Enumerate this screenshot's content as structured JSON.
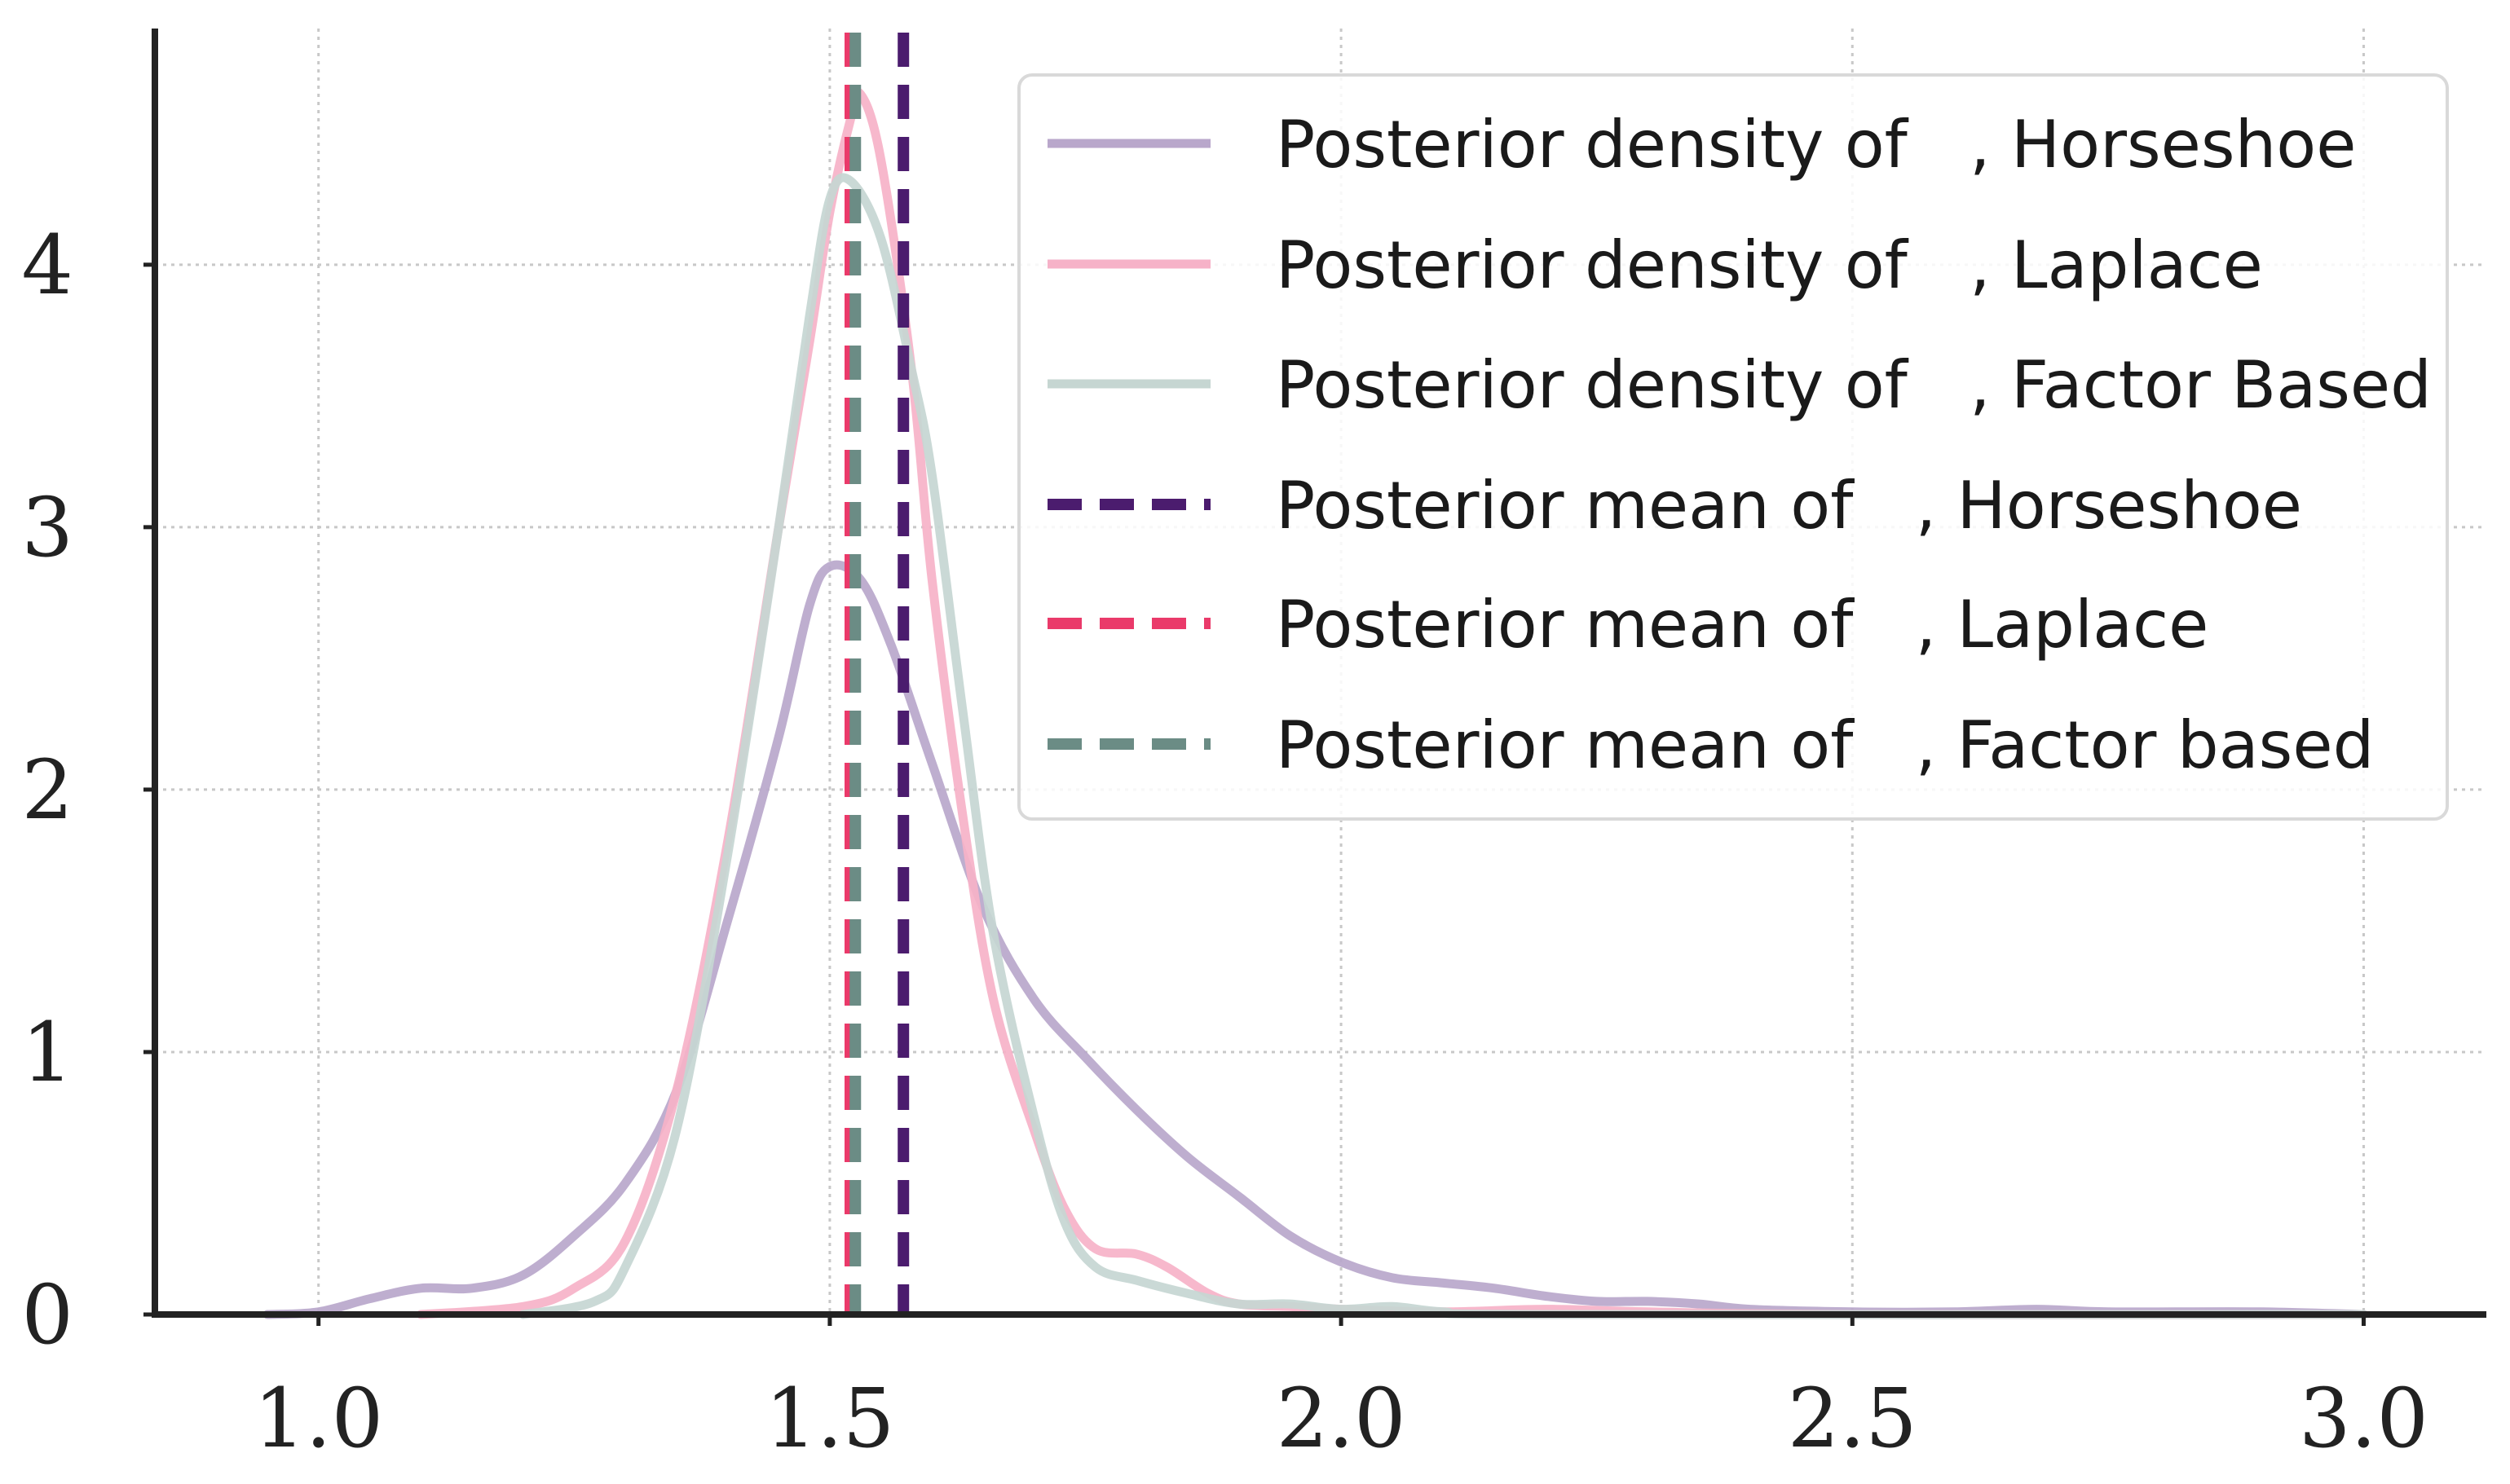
{
  "chart_data": {
    "type": "line",
    "title": "",
    "xlabel": "",
    "ylabel": "",
    "xlim": [
      0.84,
      3.12
    ],
    "ylim": [
      0,
      4.9
    ],
    "grid": true,
    "legend_position": "top-right",
    "x_ticks": [
      1.0,
      1.5,
      2.0,
      2.5,
      3.0
    ],
    "x_tick_labels": [
      "1.0",
      "1.5",
      "2.0",
      "2.5",
      "3.0"
    ],
    "y_ticks": [
      0,
      1,
      2,
      3,
      4
    ],
    "y_tick_labels": [
      "0",
      "1",
      "2",
      "3",
      "4"
    ],
    "series": [
      {
        "name": "Posterior density of , Horseshoe",
        "color": "#b9a7cb",
        "points": [
          [
            0.95,
            0.0
          ],
          [
            1.0,
            0.01
          ],
          [
            1.05,
            0.06
          ],
          [
            1.1,
            0.1
          ],
          [
            1.15,
            0.1
          ],
          [
            1.2,
            0.15
          ],
          [
            1.25,
            0.3
          ],
          [
            1.3,
            0.5
          ],
          [
            1.35,
            0.85
          ],
          [
            1.4,
            1.5
          ],
          [
            1.45,
            2.2
          ],
          [
            1.48,
            2.7
          ],
          [
            1.5,
            2.85
          ],
          [
            1.53,
            2.8
          ],
          [
            1.56,
            2.55
          ],
          [
            1.6,
            2.1
          ],
          [
            1.65,
            1.55
          ],
          [
            1.7,
            1.2
          ],
          [
            1.75,
            0.98
          ],
          [
            1.8,
            0.78
          ],
          [
            1.85,
            0.6
          ],
          [
            1.9,
            0.45
          ],
          [
            1.95,
            0.3
          ],
          [
            2.0,
            0.2
          ],
          [
            2.05,
            0.14
          ],
          [
            2.1,
            0.12
          ],
          [
            2.15,
            0.1
          ],
          [
            2.2,
            0.07
          ],
          [
            2.25,
            0.05
          ],
          [
            2.3,
            0.05
          ],
          [
            2.35,
            0.04
          ],
          [
            2.4,
            0.02
          ],
          [
            2.5,
            0.01
          ],
          [
            2.6,
            0.01
          ],
          [
            2.68,
            0.02
          ],
          [
            2.75,
            0.01
          ],
          [
            2.9,
            0.01
          ],
          [
            3.0,
            0.0
          ]
        ]
      },
      {
        "name": "Posterior density of , Laplace",
        "color": "#f6b2c8",
        "points": [
          [
            1.1,
            0.0
          ],
          [
            1.2,
            0.03
          ],
          [
            1.25,
            0.1
          ],
          [
            1.3,
            0.28
          ],
          [
            1.35,
            0.85
          ],
          [
            1.4,
            1.8
          ],
          [
            1.45,
            3.0
          ],
          [
            1.48,
            3.7
          ],
          [
            1.5,
            4.2
          ],
          [
            1.52,
            4.55
          ],
          [
            1.53,
            4.65
          ],
          [
            1.55,
            4.4
          ],
          [
            1.58,
            3.6
          ],
          [
            1.6,
            2.8
          ],
          [
            1.63,
            1.9
          ],
          [
            1.66,
            1.2
          ],
          [
            1.7,
            0.7
          ],
          [
            1.73,
            0.4
          ],
          [
            1.76,
            0.25
          ],
          [
            1.8,
            0.23
          ],
          [
            1.83,
            0.18
          ],
          [
            1.87,
            0.08
          ],
          [
            1.9,
            0.04
          ],
          [
            1.95,
            0.03
          ],
          [
            2.0,
            0.02
          ],
          [
            2.1,
            0.01
          ],
          [
            2.2,
            0.02
          ],
          [
            2.3,
            0.01
          ],
          [
            2.5,
            0.0
          ],
          [
            3.0,
            0.0
          ]
        ]
      },
      {
        "name": "Posterior density of , Factor Based",
        "color": "#c6d6d2",
        "points": [
          [
            1.2,
            0.0
          ],
          [
            1.27,
            0.05
          ],
          [
            1.3,
            0.18
          ],
          [
            1.35,
            0.7
          ],
          [
            1.4,
            1.75
          ],
          [
            1.45,
            3.0
          ],
          [
            1.48,
            3.8
          ],
          [
            1.5,
            4.25
          ],
          [
            1.52,
            4.32
          ],
          [
            1.55,
            4.1
          ],
          [
            1.58,
            3.6
          ],
          [
            1.6,
            3.2
          ],
          [
            1.63,
            2.3
          ],
          [
            1.66,
            1.45
          ],
          [
            1.7,
            0.75
          ],
          [
            1.73,
            0.35
          ],
          [
            1.76,
            0.18
          ],
          [
            1.8,
            0.13
          ],
          [
            1.85,
            0.08
          ],
          [
            1.9,
            0.04
          ],
          [
            1.95,
            0.04
          ],
          [
            2.0,
            0.02
          ],
          [
            2.05,
            0.03
          ],
          [
            2.1,
            0.01
          ],
          [
            2.2,
            0.0
          ],
          [
            3.0,
            0.0
          ]
        ]
      }
    ],
    "mean_lines": [
      {
        "name": "Posterior mean of , Horseshoe",
        "x": 1.572,
        "color": "#4b1c6e"
      },
      {
        "name": "Posterior mean of , Laplace",
        "x": 1.52,
        "color": "#ea3a6a"
      },
      {
        "name": "Posterior mean of , Factor based",
        "x": 1.525,
        "color": "#6b8c85"
      }
    ]
  },
  "legend": {
    "items": [
      {
        "label": "Posterior density of   , Horseshoe",
        "style": "solid",
        "color": "#b9a7cb"
      },
      {
        "label": "Posterior density of   , Laplace",
        "style": "solid",
        "color": "#f6b2c8"
      },
      {
        "label": "Posterior density of   , Factor Based",
        "style": "solid",
        "color": "#c6d6d2"
      },
      {
        "label": "Posterior mean of   , Horseshoe",
        "style": "dashed",
        "color": "#4b1c6e"
      },
      {
        "label": "Posterior mean of   , Laplace",
        "style": "dashed",
        "color": "#ea3a6a"
      },
      {
        "label": "Posterior mean of   , Factor based",
        "style": "dashed",
        "color": "#6b8c85"
      }
    ]
  }
}
